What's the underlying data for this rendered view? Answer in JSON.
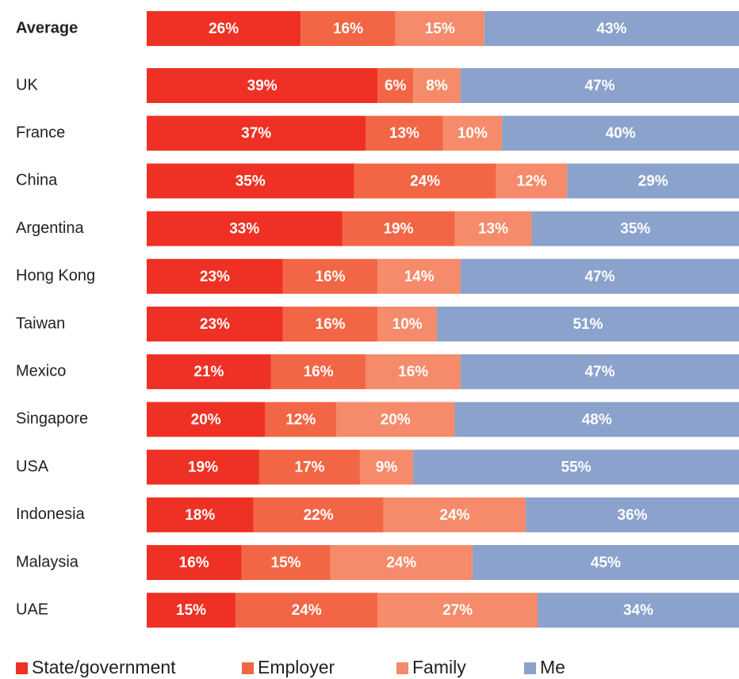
{
  "chart_data": {
    "type": "stacked-bar-horizontal",
    "categories": [
      "Average",
      "UK",
      "France",
      "China",
      "Argentina",
      "Hong Kong",
      "Taiwan",
      "Mexico",
      "Singapore",
      "USA",
      "Indonesia",
      "Malaysia",
      "UAE"
    ],
    "xlim": [
      0,
      100
    ],
    "series": [
      {
        "name": "State/government",
        "color": "#ee3124",
        "values": [
          26,
          39,
          37,
          35,
          33,
          23,
          23,
          21,
          20,
          19,
          18,
          16,
          15
        ],
        "value_labels": [
          "26%",
          "39%",
          "37%",
          "35%",
          "33%",
          "23%",
          "23%",
          "21%",
          "20%",
          "19%",
          "18%",
          "16%",
          "15%"
        ]
      },
      {
        "name": "Employer",
        "color": "#f26645",
        "values": [
          16,
          6,
          13,
          24,
          19,
          16,
          16,
          16,
          12,
          17,
          22,
          15,
          24
        ],
        "value_labels": [
          "16%",
          "6%",
          "13%",
          "24%",
          "19%",
          "16%",
          "16%",
          "16%",
          "12%",
          "17%",
          "22%",
          "15%",
          "24%"
        ]
      },
      {
        "name": "Family",
        "color": "#f58b6a",
        "values": [
          15,
          8,
          10,
          12,
          13,
          14,
          10,
          16,
          20,
          9,
          24,
          24,
          27
        ],
        "value_labels": [
          "15%",
          "8%",
          "10%",
          "12%",
          "13%",
          "14%",
          "10%",
          "16%",
          "20%",
          "9%",
          "24%",
          "24%",
          "27%"
        ]
      },
      {
        "name": "Me",
        "color": "#8aa2cc",
        "values": [
          43,
          47,
          40,
          29,
          35,
          47,
          51,
          47,
          48,
          55,
          36,
          45,
          34
        ],
        "value_labels": [
          "43%",
          "47%",
          "40%",
          "29%",
          "35%",
          "47%",
          "51%",
          "47%",
          "48%",
          "55%",
          "36%",
          "45%",
          "34%"
        ]
      }
    ],
    "legend": "bottom"
  }
}
